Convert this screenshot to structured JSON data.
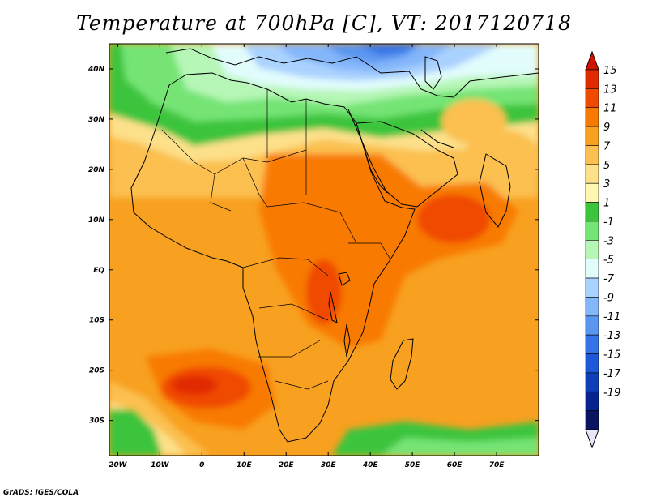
{
  "title": "Temperature at 700hPa [C], VT: 2017120718",
  "credit": "GrADS: IGES/COLA",
  "map": {
    "lon_range": [
      -22,
      80
    ],
    "lat_range": [
      -37,
      45
    ],
    "lon_ticks": [
      {
        "value": -20,
        "label": "20W"
      },
      {
        "value": -10,
        "label": "10W"
      },
      {
        "value": 0,
        "label": "0"
      },
      {
        "value": 10,
        "label": "10E"
      },
      {
        "value": 20,
        "label": "20E"
      },
      {
        "value": 30,
        "label": "30E"
      },
      {
        "value": 40,
        "label": "40E"
      },
      {
        "value": 50,
        "label": "50E"
      },
      {
        "value": 60,
        "label": "60E"
      },
      {
        "value": 70,
        "label": "70E"
      }
    ],
    "lat_ticks": [
      {
        "value": 40,
        "label": "40N"
      },
      {
        "value": 30,
        "label": "30N"
      },
      {
        "value": 20,
        "label": "20N"
      },
      {
        "value": 10,
        "label": "10N"
      },
      {
        "value": 0,
        "label": "EQ"
      },
      {
        "value": -10,
        "label": "10S"
      },
      {
        "value": -20,
        "label": "20S"
      },
      {
        "value": -30,
        "label": "30S"
      }
    ]
  },
  "colorbar": {
    "labels": [
      "15",
      "13",
      "11",
      "9",
      "7",
      "5",
      "3",
      "1",
      "-1",
      "-3",
      "-5",
      "-7",
      "-9",
      "-11",
      "-13",
      "-15",
      "-17",
      "-19"
    ],
    "colors": [
      "#e02a00",
      "#f04a00",
      "#f87a00",
      "#f8a020",
      "#fbc050",
      "#fde08a",
      "#fff6b0",
      "#3cc43c",
      "#74e474",
      "#b6f6b6",
      "#e2fcfc",
      "#aad2ff",
      "#84b6fa",
      "#5a96f0",
      "#3474e6",
      "#1d58d8",
      "#0f3eb6",
      "#07248e",
      "#0a1460"
    ],
    "top_color": "#d01400",
    "bottom_color": "#e6e6fa"
  }
}
